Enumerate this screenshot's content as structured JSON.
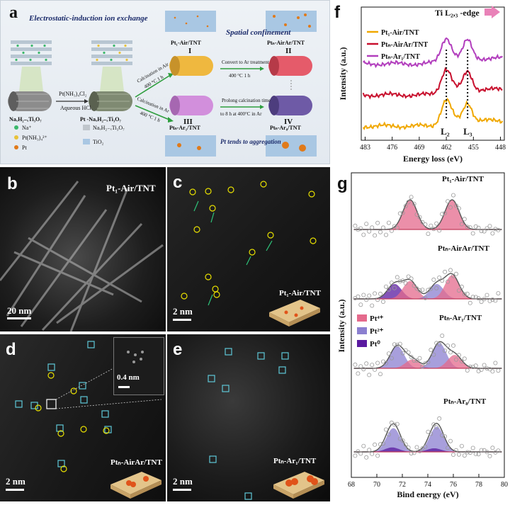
{
  "figure": {
    "panel_a": {
      "label": "a",
      "title_electrostatic": "Electrostatic-induction ion exchange",
      "title_spatial": "Spatial confinement",
      "precursor": "NaₓH₂₋ₓTi₃O₇",
      "reagent": "Pt(NH₃)₄Cl₂",
      "reagent_sub": "Aqueous HCl",
      "intermediate": "Pt -NaₓH₂₋ₓTi₃O₇",
      "step_air": "Calcination in Air",
      "step_air_cond": "400 °C 1 h",
      "step_ar": "Calcination in Ar",
      "step_ar_cond": "400 °C 1 h",
      "step_convert": "Convert to Ar treatment",
      "step_convert_cond": "400 °C 1 h",
      "step_prolong": "Prolong calcination time",
      "step_prolong_cond": "to 8 h at 400°C in Ar",
      "product_I": "Pt₁-Air/TNT",
      "product_II": "Ptₙ-AirAr/TNT",
      "product_III": "Ptₙ-Ar₁/TNT",
      "product_IV": "Ptₙ-Ar₈/TNT",
      "roman_I": "I",
      "roman_II": "II",
      "roman_III": "III",
      "roman_IV": "IV",
      "aggregation": "Pt tends to aggregation",
      "legend_na": "Na⁺",
      "legend_ptnh": "Pt(NH₃)₄²⁺",
      "legend_pt": "Pt",
      "legend_nahti": "NaₓH₂₋ₓTi₃O₇",
      "legend_tio2": "TiO₂"
    },
    "panel_b": {
      "label": "b",
      "sample": "Pt₁-Air/TNT",
      "scale": "20 nm"
    },
    "panel_c": {
      "label": "c",
      "sample": "Pt₁-Air/TNT",
      "scale": "2 nm"
    },
    "panel_d": {
      "label": "d",
      "sample": "Ptₙ-AirAr/TNT",
      "scale": "2 nm",
      "inset_scale": "0.4 nm"
    },
    "panel_e": {
      "label": "e",
      "sample": "Ptₙ-Ar₁/TNT",
      "scale": "2 nm"
    },
    "panel_f": {
      "label": "f",
      "edge_label": "Ti L₂,₃ -edge",
      "peak_L2": "L₂",
      "peak_L3": "L₃"
    },
    "panel_g": {
      "label": "g"
    }
  },
  "chart_data": [
    {
      "type": "line",
      "panel": "f",
      "xlabel": "Energy loss (eV)",
      "ylabel": "Intensity (a.u.)",
      "xlim": [
        484,
        447
      ],
      "x_ticks": [
        483,
        476,
        469,
        462,
        455,
        448
      ],
      "annotations": [
        "Ti L₂,₃ -edge",
        "L₂",
        "L₃"
      ],
      "peaks_eV": [
        462,
        456.5
      ],
      "series": [
        {
          "name": "Pt₁-Air/TNT",
          "color": "#f0a800",
          "offset": 0
        },
        {
          "name": "Ptₙ-AirAr/TNT",
          "color": "#c8102e",
          "offset": 1
        },
        {
          "name": "Ptₙ-Ar₁/TNT",
          "color": "#b23ebd",
          "offset": 2
        }
      ]
    },
    {
      "type": "line",
      "panel": "g",
      "xlabel": "Bind energy (eV)",
      "ylabel": "Intensity (a.u.)",
      "xlim": [
        68,
        80
      ],
      "x_ticks": [
        68,
        70,
        72,
        74,
        76,
        78,
        80
      ],
      "components": [
        {
          "name": "Pt⁴⁺",
          "color": "#e46a8c"
        },
        {
          "name": "Pt²⁺",
          "color": "#8b7fd0"
        },
        {
          "name": "Pt⁰",
          "color": "#5a1aa0"
        }
      ],
      "spectra": [
        {
          "name": "Pt₁-Air/TNT",
          "peaks": [
            [
              72.6,
              0,
              1.0,
              1
            ],
            [
              75.9,
              0,
              1.0,
              1
            ]
          ]
        },
        {
          "name": "Ptₙ-AirAr/TNT",
          "peaks": [
            [
              71.4,
              2,
              0.5,
              1
            ],
            [
              72.6,
              0,
              0.6,
              1
            ],
            [
              74.7,
              1,
              0.5,
              1
            ],
            [
              75.9,
              0,
              0.8,
              1
            ]
          ]
        },
        {
          "name": "Ptₙ-Ar₁/TNT",
          "peaks": [
            [
              71.6,
              1,
              0.75,
              1
            ],
            [
              72.8,
              0,
              0.3,
              1
            ],
            [
              74.9,
              1,
              0.85,
              1
            ],
            [
              76.1,
              0,
              0.45,
              1
            ]
          ]
        },
        {
          "name": "Ptₙ-Ar₈/TNT",
          "peaks": [
            [
              71.3,
              1,
              0.8,
              1
            ],
            [
              74.7,
              1,
              0.85,
              1
            ],
            [
              71.2,
              2,
              0.15,
              1
            ],
            [
              74.5,
              2,
              0.12,
              1
            ]
          ]
        }
      ]
    }
  ]
}
